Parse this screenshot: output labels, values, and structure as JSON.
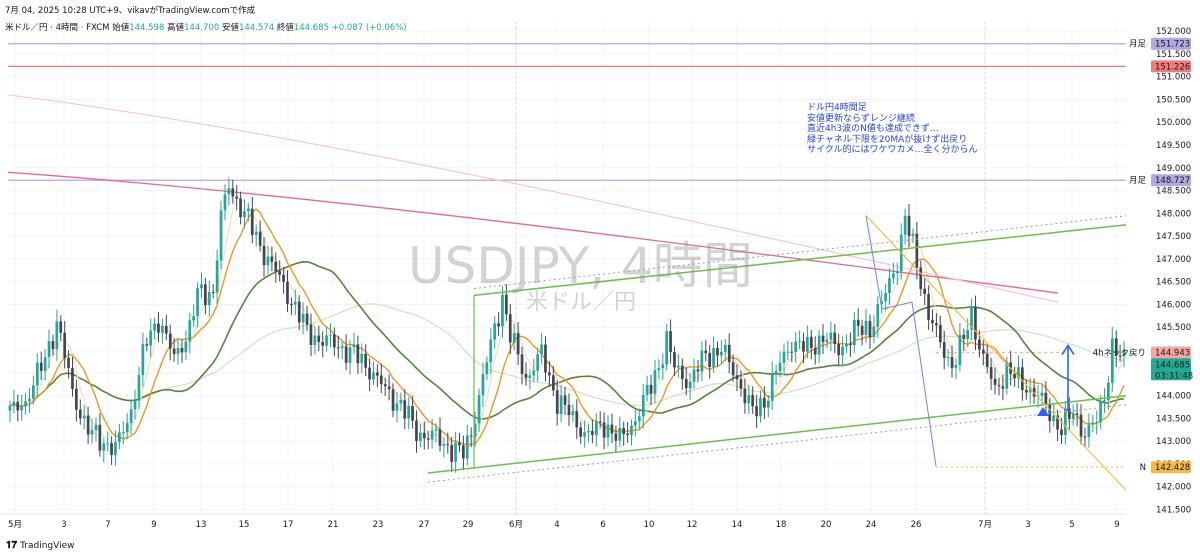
{
  "header": {
    "meta": "7月 04, 2025 10:28 UTC+9、vikavがTradingView.comで作成",
    "symbol": "米ドル／円 · 4時間 · FXCM",
    "o_label": "始値",
    "o": "144.598",
    "h_label": "高値",
    "h": "144.700",
    "l_label": "安値",
    "l": "144.574",
    "c_label": "終値",
    "c": "144.685",
    "chg": "+0.087 (+0.06%)"
  },
  "watermark": {
    "symbol": "USDJPY, 4時間",
    "name": "米ドル／円"
  },
  "annotation": "ドル円4時間足\n安値更新ならずレンジ継続\n直近4h3波のN値も達成できず…\n緑チャネル下限を20MAが抜けず出戻り\nサイクル的にはワケワカメ…全く分からん",
  "footer": {
    "brand": "TradingView"
  },
  "colors": {
    "up": "#26a69a",
    "down": "#434651",
    "ema_fast": "#f5e0b3",
    "ma20": "#f0962a",
    "ma_green": "#57843a",
    "ma_light_green": "#cfe3c4",
    "ma_pink": "#e4679b",
    "ma_light_pink": "#f5c2d3",
    "channel": "#6bbf4e",
    "purple": "#b6a6e0",
    "red_level": "#f27c7c",
    "orange_line": "#f5b946",
    "arrow": "#2962ff"
  },
  "chart_data": {
    "type": "candlestick",
    "title": "米ドル／円 · 4時間 · FXCM",
    "y_axis": {
      "min": 141.4,
      "max": 152.2,
      "ticks": [
        141.5,
        142.0,
        142.5,
        143.0,
        143.5,
        144.0,
        144.5,
        145.0,
        145.5,
        146.0,
        146.5,
        147.0,
        147.5,
        148.0,
        148.5,
        149.0,
        149.5,
        150.0,
        150.5,
        151.0,
        151.5,
        152.0
      ]
    },
    "x_labels": [
      "5月",
      "3",
      "7",
      "9",
      "13",
      "15",
      "17",
      "21",
      "23",
      "27",
      "29",
      "6月",
      "4",
      "6",
      "10",
      "12",
      "14",
      "18",
      "20",
      "24",
      "26",
      "7月",
      "3",
      "5",
      "9"
    ],
    "price_keypoints": [
      [
        0,
        143.6
      ],
      [
        4,
        143.9
      ],
      [
        8,
        144.6
      ],
      [
        12,
        145.6
      ],
      [
        16,
        144.1
      ],
      [
        20,
        143.2
      ],
      [
        24,
        143.0
      ],
      [
        27,
        142.8
      ],
      [
        31,
        143.7
      ],
      [
        35,
        145.2
      ],
      [
        38,
        145.7
      ],
      [
        42,
        144.8
      ],
      [
        46,
        145.5
      ],
      [
        48,
        146.2
      ],
      [
        52,
        146.3
      ],
      [
        54,
        147.9
      ],
      [
        56,
        148.6
      ],
      [
        60,
        148.0
      ],
      [
        64,
        147.3
      ],
      [
        68,
        146.7
      ],
      [
        72,
        146.1
      ],
      [
        76,
        145.4
      ],
      [
        80,
        145.2
      ],
      [
        84,
        145.1
      ],
      [
        88,
        144.9
      ],
      [
        92,
        144.6
      ],
      [
        96,
        144.1
      ],
      [
        100,
        143.8
      ],
      [
        104,
        143.2
      ],
      [
        108,
        143.1
      ],
      [
        112,
        142.9
      ],
      [
        116,
        142.7
      ],
      [
        118,
        143.2
      ],
      [
        120,
        144.0
      ],
      [
        123,
        145.1
      ],
      [
        126,
        146.2
      ],
      [
        128,
        145.3
      ],
      [
        132,
        144.4
      ],
      [
        136,
        144.9
      ],
      [
        140,
        143.9
      ],
      [
        144,
        143.5
      ],
      [
        148,
        143.1
      ],
      [
        152,
        143.4
      ],
      [
        156,
        143.0
      ],
      [
        160,
        143.5
      ],
      [
        164,
        144.2
      ],
      [
        168,
        145.2
      ],
      [
        170,
        144.6
      ],
      [
        174,
        144.3
      ],
      [
        178,
        144.9
      ],
      [
        182,
        145.0
      ],
      [
        186,
        144.4
      ],
      [
        190,
        143.6
      ],
      [
        193,
        143.9
      ],
      [
        196,
        144.5
      ],
      [
        200,
        145.2
      ],
      [
        204,
        145.0
      ],
      [
        208,
        145.3
      ],
      [
        212,
        145.0
      ],
      [
        216,
        145.4
      ],
      [
        220,
        145.5
      ],
      [
        224,
        146.2
      ],
      [
        227,
        147.0
      ],
      [
        229,
        147.9
      ],
      [
        232,
        146.9
      ],
      [
        235,
        145.8
      ],
      [
        238,
        145.1
      ],
      [
        241,
        144.7
      ],
      [
        244,
        145.2
      ],
      [
        246,
        145.8
      ],
      [
        249,
        144.8
      ],
      [
        252,
        144.1
      ],
      [
        255,
        144.6
      ],
      [
        258,
        144.3
      ],
      [
        262,
        144.1
      ],
      [
        266,
        143.6
      ],
      [
        269,
        143.3
      ],
      [
        272,
        143.6
      ],
      [
        275,
        143.2
      ],
      [
        278,
        143.4
      ],
      [
        280,
        144.0
      ],
      [
        282,
        145.1
      ],
      [
        285,
        144.7
      ]
    ],
    "price_labels": [
      {
        "value": 151.723,
        "text": "151.723",
        "color": "#b6a6e0",
        "tag": "月足"
      },
      {
        "value": 151.226,
        "text": "151.226",
        "color": "#f27c7c"
      },
      {
        "value": 148.727,
        "text": "148.727",
        "color": "#b6a6e0",
        "tag": "月足"
      },
      {
        "value": 144.943,
        "text": "144.943",
        "color": "#f7a4a4",
        "tag": "4hネック戻り"
      },
      {
        "value": 144.685,
        "text": "144.685",
        "color": "#22ab94",
        "sub": "03:31:48"
      },
      {
        "value": 142.428,
        "text": "142.428",
        "color": "#f5b946",
        "tag": "N"
      }
    ]
  }
}
